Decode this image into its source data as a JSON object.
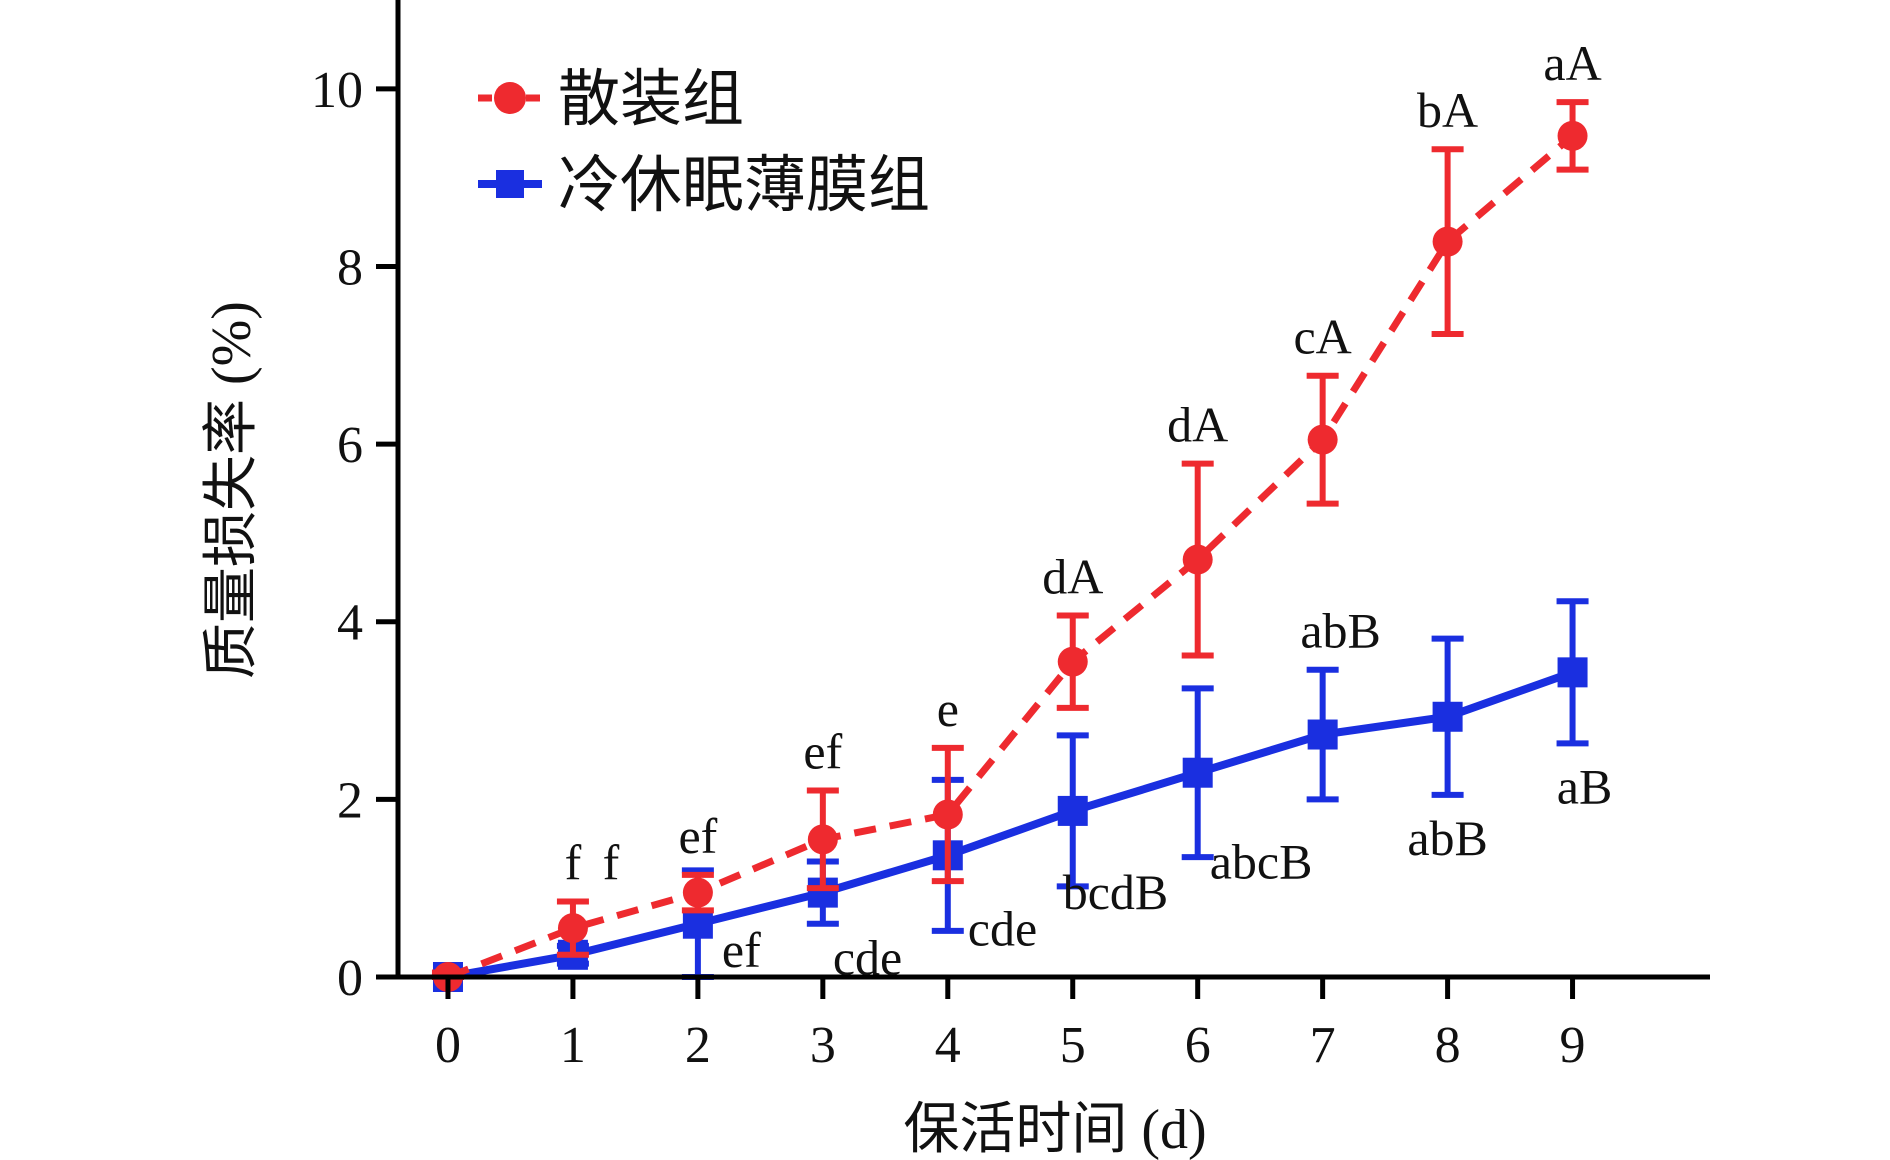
{
  "chart_data": {
    "type": "line",
    "xlabel": "保活时间 (d)",
    "ylabel": "质量损失率 (%)",
    "xlim": [
      -0.4,
      10.1
    ],
    "ylim": [
      0,
      11
    ],
    "x": [
      0,
      1,
      2,
      3,
      4,
      5,
      6,
      7,
      8,
      9
    ],
    "xticks": [
      "0",
      "1",
      "2",
      "3",
      "4",
      "5",
      "6",
      "7",
      "8",
      "9"
    ],
    "yticks": [
      "0",
      "2",
      "4",
      "6",
      "8",
      "10"
    ],
    "grid": false,
    "legend_position": "top-left",
    "series": [
      {
        "name": "散装组",
        "color": "#ee2a2f",
        "line_style": "dashed",
        "marker": "circle",
        "values": [
          0.0,
          0.55,
          0.95,
          1.55,
          1.83,
          3.55,
          4.7,
          6.05,
          8.28,
          9.47
        ],
        "errors": [
          0.05,
          0.3,
          0.2,
          0.55,
          0.75,
          0.52,
          1.08,
          0.72,
          1.04,
          0.38
        ],
        "labels": [
          "",
          "f",
          "ef",
          "ef",
          "e",
          "dA",
          "dA",
          "cA",
          "bA",
          "aA"
        ]
      },
      {
        "name": "冷休眠薄膜组",
        "color": "#1a2fe0",
        "line_style": "solid",
        "marker": "square",
        "values": [
          0.0,
          0.25,
          0.6,
          0.95,
          1.37,
          1.87,
          2.3,
          2.73,
          2.93,
          3.43
        ],
        "errors": [
          0.05,
          0.1,
          0.6,
          0.35,
          0.85,
          0.85,
          0.95,
          0.73,
          0.88,
          0.8
        ],
        "labels": [
          "",
          "f",
          "ef",
          "cde",
          "cde",
          "bcdB",
          "abcB",
          "abB",
          "abB",
          "aB"
        ]
      }
    ]
  }
}
